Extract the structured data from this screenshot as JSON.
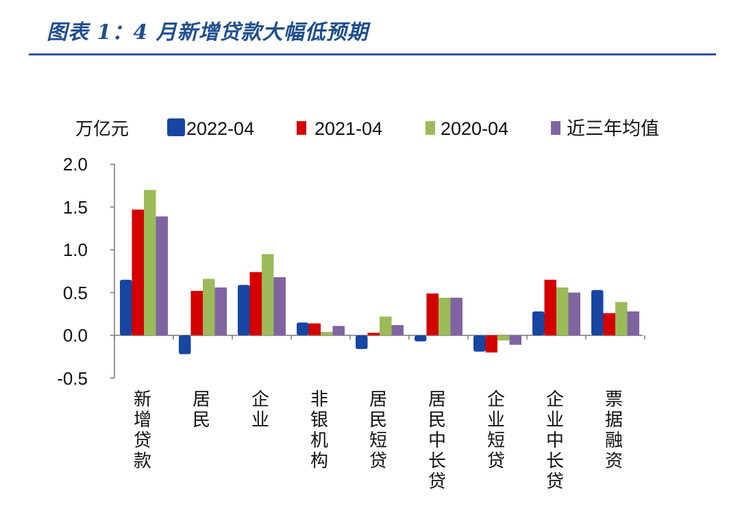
{
  "figure": {
    "title": "图表 1：4 月新增贷款大幅低预期"
  },
  "colors": {
    "title": "#1f4e8c",
    "rule": "#2a56a3",
    "axis": "#777777"
  },
  "chart_data": {
    "type": "bar",
    "unit": "万亿元",
    "categories": [
      "新增贷款",
      "居民",
      "企业",
      "非银机构",
      "居民短贷",
      "居民中长贷",
      "企业短贷",
      "企业中长贷",
      "票据融资"
    ],
    "series": [
      {
        "name": "2022-04",
        "color": "#1746a2",
        "values": [
          0.65,
          -0.22,
          0.59,
          0.15,
          -0.16,
          -0.07,
          -0.19,
          0.28,
          0.53
        ]
      },
      {
        "name": "2021-04",
        "color": "#d40000",
        "values": [
          1.47,
          0.52,
          0.74,
          0.14,
          0.03,
          0.49,
          -0.2,
          0.65,
          0.26
        ]
      },
      {
        "name": "2020-04",
        "color": "#9bbb59",
        "values": [
          1.7,
          0.66,
          0.95,
          0.04,
          0.22,
          0.44,
          -0.06,
          0.56,
          0.39
        ]
      },
      {
        "name": "近三年均值",
        "color": "#8064a2",
        "values": [
          1.39,
          0.56,
          0.68,
          0.11,
          0.12,
          0.44,
          -0.11,
          0.5,
          0.28
        ]
      }
    ],
    "yticks": [
      "2.0",
      "1.5",
      "1.0",
      "0.5",
      "0.0",
      "-0.5"
    ],
    "ylim": [
      -0.5,
      2.0
    ],
    "legend_position": "top"
  }
}
